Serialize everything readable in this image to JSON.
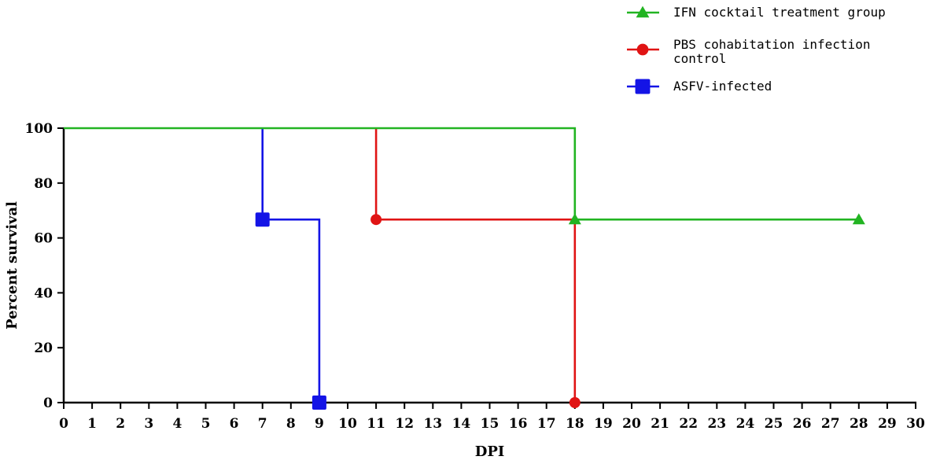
{
  "chart_data": {
    "type": "line",
    "title": "",
    "xlabel": "DPI",
    "ylabel": "Percent survival",
    "xlim": [
      0,
      30
    ],
    "ylim": [
      0,
      100
    ],
    "xticks": [
      0,
      1,
      2,
      3,
      4,
      5,
      6,
      7,
      8,
      9,
      10,
      11,
      12,
      13,
      14,
      15,
      16,
      17,
      18,
      19,
      20,
      21,
      22,
      23,
      24,
      25,
      26,
      27,
      28,
      29,
      30
    ],
    "yticks": [
      0,
      20,
      40,
      60,
      80,
      100
    ],
    "grid": false,
    "legend_position": "top-right",
    "series": [
      {
        "name": "IFN cocktail treatment group",
        "color": "#22b422",
        "marker": "triangle",
        "steps": [
          [
            0,
            100
          ],
          [
            18,
            100
          ],
          [
            18,
            66.7
          ],
          [
            28,
            66.7
          ]
        ],
        "markers": [
          [
            18,
            66.7
          ],
          [
            28,
            66.7
          ]
        ]
      },
      {
        "name": "PBS cohabitation infection control",
        "legend_lines": [
          "PBS cohabitation infection",
          "control"
        ],
        "color": "#e01414",
        "marker": "circle",
        "steps": [
          [
            11,
            100
          ],
          [
            11,
            66.7
          ],
          [
            18,
            66.7
          ],
          [
            18,
            0
          ]
        ],
        "markers": [
          [
            11,
            66.7
          ],
          [
            18,
            0
          ]
        ]
      },
      {
        "name": "ASFV-infected",
        "color": "#1414e6",
        "marker": "square",
        "steps": [
          [
            7,
            100
          ],
          [
            7,
            66.7
          ],
          [
            9,
            66.7
          ],
          [
            9,
            0
          ]
        ],
        "markers": [
          [
            7,
            66.7
          ],
          [
            9,
            0
          ]
        ]
      }
    ]
  }
}
